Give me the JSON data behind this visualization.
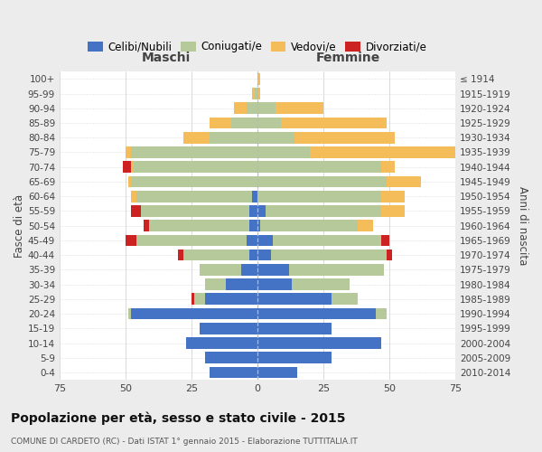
{
  "age_groups": [
    "0-4",
    "5-9",
    "10-14",
    "15-19",
    "20-24",
    "25-29",
    "30-34",
    "35-39",
    "40-44",
    "45-49",
    "50-54",
    "55-59",
    "60-64",
    "65-69",
    "70-74",
    "75-79",
    "80-84",
    "85-89",
    "90-94",
    "95-99",
    "100+"
  ],
  "birth_years": [
    "2010-2014",
    "2005-2009",
    "2000-2004",
    "1995-1999",
    "1990-1994",
    "1985-1989",
    "1980-1984",
    "1975-1979",
    "1970-1974",
    "1965-1969",
    "1960-1964",
    "1955-1959",
    "1950-1954",
    "1945-1949",
    "1940-1944",
    "1935-1939",
    "1930-1934",
    "1925-1929",
    "1920-1924",
    "1915-1919",
    "≤ 1914"
  ],
  "colors": {
    "celibe": "#4472c4",
    "coniugato": "#b5c99a",
    "vedovo": "#f5bc5a",
    "divorziato": "#cc2222"
  },
  "males": {
    "celibe": [
      18,
      20,
      27,
      22,
      48,
      20,
      12,
      6,
      3,
      4,
      3,
      3,
      2,
      0,
      0,
      0,
      0,
      0,
      0,
      0,
      0
    ],
    "coniugato": [
      0,
      0,
      0,
      0,
      1,
      4,
      8,
      16,
      25,
      42,
      38,
      41,
      44,
      48,
      47,
      48,
      18,
      10,
      4,
      1,
      0
    ],
    "vedovo": [
      0,
      0,
      0,
      0,
      0,
      0,
      0,
      0,
      0,
      0,
      0,
      0,
      2,
      1,
      1,
      2,
      10,
      8,
      5,
      1,
      0
    ],
    "divorziato": [
      0,
      0,
      0,
      0,
      0,
      1,
      0,
      0,
      2,
      4,
      2,
      4,
      0,
      0,
      3,
      0,
      0,
      0,
      0,
      0,
      0
    ]
  },
  "females": {
    "nubile": [
      15,
      28,
      47,
      28,
      45,
      28,
      13,
      12,
      5,
      6,
      1,
      3,
      0,
      0,
      0,
      0,
      0,
      0,
      0,
      0,
      0
    ],
    "coniugata": [
      0,
      0,
      0,
      0,
      4,
      10,
      22,
      36,
      44,
      41,
      37,
      44,
      47,
      49,
      47,
      20,
      14,
      9,
      7,
      0,
      0
    ],
    "vedova": [
      0,
      0,
      0,
      0,
      0,
      0,
      0,
      0,
      0,
      0,
      6,
      9,
      9,
      13,
      5,
      60,
      38,
      40,
      18,
      1,
      1
    ],
    "divorziata": [
      0,
      0,
      0,
      0,
      0,
      0,
      0,
      0,
      2,
      3,
      0,
      0,
      0,
      0,
      0,
      0,
      0,
      0,
      0,
      0,
      0
    ]
  },
  "xlim": 75,
  "title": "Popolazione per età, sesso e stato civile - 2015",
  "subtitle": "COMUNE DI CARDETO (RC) - Dati ISTAT 1° gennaio 2015 - Elaborazione TUTTITALIA.IT",
  "ylabel_left": "Fasce di età",
  "ylabel_right": "Anni di nascita",
  "header_left": "Maschi",
  "header_right": "Femmine",
  "bg_color": "#ececec",
  "plot_bg_color": "#ffffff"
}
